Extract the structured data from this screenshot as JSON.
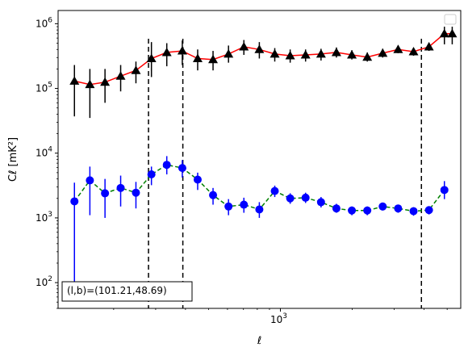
{
  "chart_data": {
    "type": "scatter",
    "x_scale": "log",
    "y_scale": "log",
    "xlim": [
      117,
      5700
    ],
    "ylim": [
      40,
      1600000
    ],
    "xlabel": "ℓ",
    "ylabel": "Cℓ  [mK²]",
    "x_tick_labels": [
      {
        "value": 1000,
        "base": "10",
        "exp": "3"
      }
    ],
    "y_tick_labels": [
      {
        "value": 100,
        "base": "10",
        "exp": "2"
      },
      {
        "value": 1000,
        "base": "10",
        "exp": "3"
      },
      {
        "value": 10000,
        "base": "10",
        "exp": "4"
      },
      {
        "value": 100000,
        "base": "10",
        "exp": "5"
      },
      {
        "value": 1000000,
        "base": "10",
        "exp": "6"
      }
    ],
    "annotation": "(l,b)=(101.21,48.69)",
    "legend": {
      "position": "top-right",
      "entries": []
    },
    "grid": false,
    "vertical_lines": [
      280,
      390,
      3900
    ],
    "series": [
      {
        "marker": "triangle",
        "color": "#000000",
        "fit_color": "#ff0000",
        "fit_style": "solid",
        "x": [
          137,
          159,
          184,
          214,
          248,
          288,
          334,
          388,
          450,
          522,
          606,
          703,
          816,
          947,
          1099,
          1275,
          1480,
          1717,
          1993,
          2313,
          2684,
          3115,
          3615,
          4195,
          4868,
          5250
        ],
        "y": [
          130000,
          115000,
          125000,
          155000,
          190000,
          290000,
          360000,
          380000,
          290000,
          280000,
          340000,
          440000,
          400000,
          340000,
          320000,
          330000,
          340000,
          360000,
          330000,
          305000,
          350000,
          400000,
          370000,
          440000,
          700000,
          700000
        ],
        "err_low": [
          37000,
          35000,
          60000,
          90000,
          120000,
          150000,
          220000,
          230000,
          190000,
          190000,
          250000,
          330000,
          290000,
          260000,
          250000,
          260000,
          270000,
          300000,
          280000,
          260000,
          300000,
          350000,
          320000,
          380000,
          480000,
          480000
        ],
        "err_high": [
          230000,
          200000,
          200000,
          230000,
          260000,
          520000,
          500000,
          550000,
          400000,
          380000,
          460000,
          560000,
          520000,
          420000,
          400000,
          400000,
          410000,
          430000,
          390000,
          360000,
          410000,
          460000,
          420000,
          510000,
          900000,
          900000
        ]
      },
      {
        "marker": "circle",
        "color": "#0000ff",
        "fit_color": "#008000",
        "fit_style": "dashed",
        "x": [
          137,
          159,
          184,
          214,
          248,
          288,
          334,
          388,
          450,
          522,
          606,
          703,
          816,
          947,
          1099,
          1275,
          1480,
          1717,
          1993,
          2313,
          2684,
          3115,
          3615,
          4195,
          4868
        ],
        "y": [
          1800,
          3800,
          2400,
          2900,
          2450,
          4700,
          6600,
          5900,
          3900,
          2250,
          1500,
          1600,
          1350,
          2600,
          2000,
          2050,
          1750,
          1400,
          1300,
          1300,
          1500,
          1400,
          1270,
          1320,
          2700
        ],
        "err_low": [
          100,
          1100,
          1000,
          1500,
          1400,
          3200,
          4700,
          4200,
          2700,
          1600,
          1100,
          1200,
          1000,
          2100,
          1650,
          1700,
          1450,
          1200,
          1100,
          1100,
          1300,
          1200,
          1080,
          1130,
          1950
        ],
        "err_high": [
          3500,
          6200,
          4000,
          4500,
          3600,
          6200,
          9000,
          7800,
          5000,
          2900,
          1950,
          2050,
          1750,
          3150,
          2400,
          2450,
          2100,
          1650,
          1500,
          1500,
          1700,
          1600,
          1460,
          1500,
          3700
        ]
      }
    ]
  }
}
